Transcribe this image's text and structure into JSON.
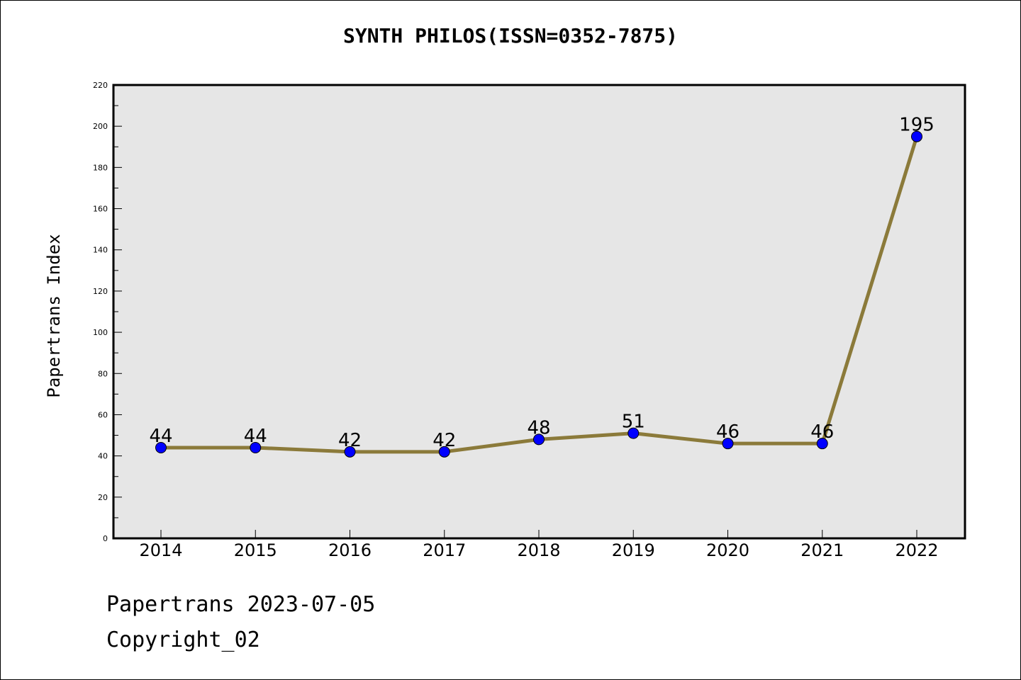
{
  "chart_data": {
    "type": "line",
    "title": "SYNTH PHILOS(ISSN=0352-7875)",
    "xlabel": "",
    "ylabel": "Papertrans Index",
    "categories": [
      "2014",
      "2015",
      "2016",
      "2017",
      "2018",
      "2019",
      "2020",
      "2021",
      "2022"
    ],
    "values": [
      44,
      44,
      42,
      42,
      48,
      51,
      46,
      46,
      195
    ],
    "ylim": [
      0,
      220
    ],
    "yticks": [
      0,
      20,
      40,
      60,
      80,
      100,
      120,
      140,
      160,
      180,
      200,
      220
    ],
    "data_labels": [
      "44",
      "44",
      "42",
      "42",
      "48",
      "51",
      "46",
      "46",
      "195"
    ],
    "grid": false,
    "legend": "none",
    "colors": {
      "line": "#8b7a3a",
      "marker": "#0000ff",
      "plot_background": "#e6e6e6"
    }
  },
  "footer": {
    "date_text": "Papertrans 2023-07-05",
    "copyright_text": "Copyright_02"
  }
}
